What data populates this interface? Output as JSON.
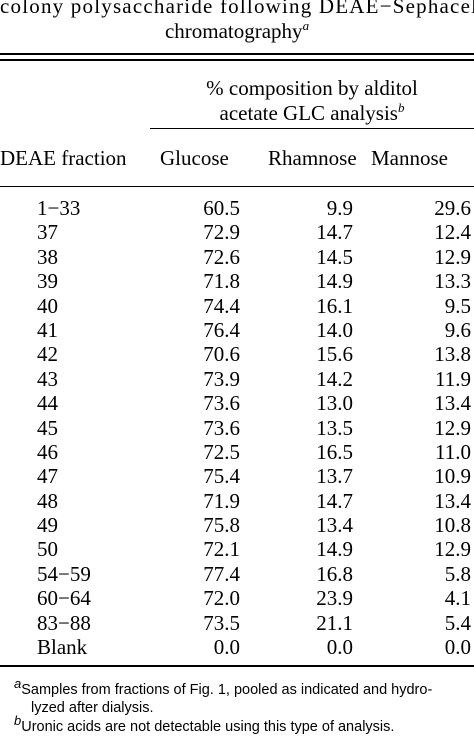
{
  "caption": {
    "line1": "colony polysaccharide following DEAE−Sephacel",
    "line2": "chromatography",
    "line2_mark": "a"
  },
  "spanning_header": {
    "line1": "% composition by alditol",
    "line2": "acetate GLC analysis",
    "mark": "b"
  },
  "columns": [
    "DEAE fraction",
    "Glucose",
    "Rhamnose",
    "Mannose"
  ],
  "rows": [
    [
      "1−33",
      "60.5",
      "9.9",
      "29.6"
    ],
    [
      "37",
      "72.9",
      "14.7",
      "12.4"
    ],
    [
      "38",
      "72.6",
      "14.5",
      "12.9"
    ],
    [
      "39",
      "71.8",
      "14.9",
      "13.3"
    ],
    [
      "40",
      "74.4",
      "16.1",
      "9.5"
    ],
    [
      "41",
      "76.4",
      "14.0",
      "9.6"
    ],
    [
      "42",
      "70.6",
      "15.6",
      "13.8"
    ],
    [
      "43",
      "73.9",
      "14.2",
      "11.9"
    ],
    [
      "44",
      "73.6",
      "13.0",
      "13.4"
    ],
    [
      "45",
      "73.6",
      "13.5",
      "12.9"
    ],
    [
      "46",
      "72.5",
      "16.5",
      "11.0"
    ],
    [
      "47",
      "75.4",
      "13.7",
      "10.9"
    ],
    [
      "48",
      "71.9",
      "14.7",
      "13.4"
    ],
    [
      "49",
      "75.8",
      "13.4",
      "10.8"
    ],
    [
      "50",
      "72.1",
      "14.9",
      "12.9"
    ],
    [
      "54−59",
      "77.4",
      "16.8",
      "5.8"
    ],
    [
      "60−64",
      "72.0",
      "23.9",
      "4.1"
    ],
    [
      "83−88",
      "73.5",
      "21.1",
      "5.4"
    ],
    [
      "Blank",
      "0.0",
      "0.0",
      "0.0"
    ]
  ],
  "footnotes": {
    "a_mark": "a",
    "a_line1": "Samples from fractions of Fig. 1, pooled as indicated and hydro-",
    "a_line2": "lyzed after dialysis.",
    "b_mark": "b",
    "b_text": "Uronic acids are not detectable using this type of analysis."
  }
}
